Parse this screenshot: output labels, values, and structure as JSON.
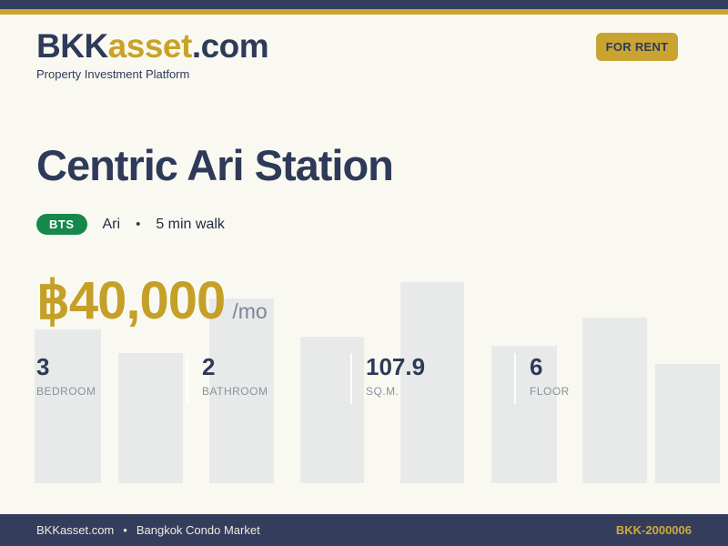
{
  "brand": {
    "prefix": "BKK",
    "accent": "asset",
    "suffix": ".com",
    "tagline": "Property Investment Platform"
  },
  "header": {
    "badge_label": "FOR RENT"
  },
  "listing": {
    "title": "Centric Ari Station",
    "transit": {
      "system": "BTS",
      "station": "Ari",
      "separator": "•",
      "walk": "5 min walk"
    },
    "price": {
      "amount": "฿40,000",
      "period": "/mo"
    },
    "stats": [
      {
        "value": "3",
        "label": "BEDROOM"
      },
      {
        "value": "2",
        "label": "BATHROOM"
      },
      {
        "value": "107.9",
        "label": "SQ.M."
      },
      {
        "value": "6",
        "label": "FLOOR"
      }
    ]
  },
  "footer": {
    "site": "BKKasset.com",
    "separator": "•",
    "market": "Bangkok Condo Market",
    "reference": "BKK-2000006"
  },
  "colors": {
    "navy": "#2E3A59",
    "gold": "#C9A432",
    "price_gold": "#C5A028",
    "bts_green": "#17884B",
    "background": "#FAF9F1",
    "bar_gray": "#E8EAEA",
    "muted_gray": "#8A919C"
  }
}
